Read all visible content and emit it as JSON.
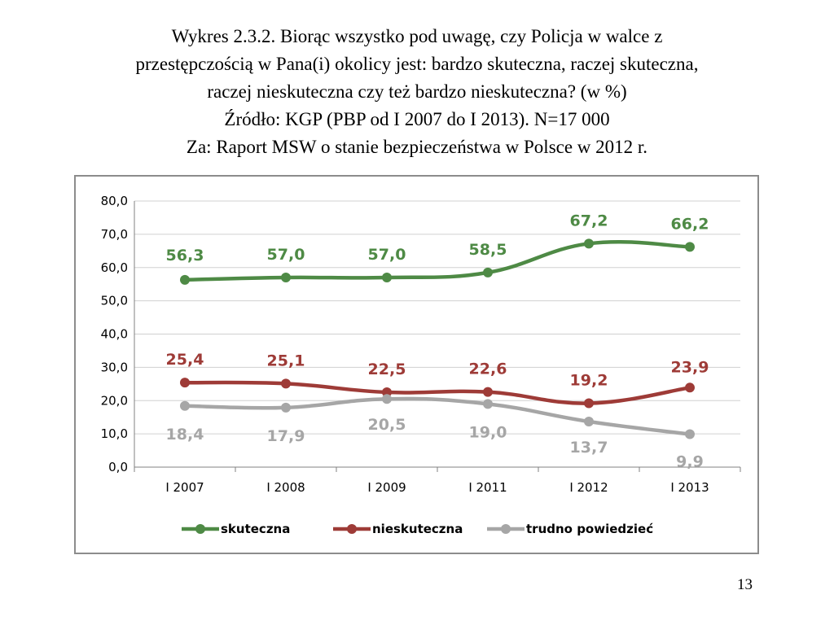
{
  "slide": {
    "title_lines": [
      "Wykres 2.3.2. Biorąc wszystko pod uwagę, czy Policja w walce z",
      "przestępczością w Pana(i) okolicy jest: bardzo skuteczna, raczej skuteczna,",
      "raczej nieskuteczna czy też bardzo nieskuteczna? (w %)",
      "Źródło: KGP (PBP od I 2007 do I 2013). N=17 000",
      "Za: Raport MSW o stanie bezpieczeństwa w Polsce w 2012 r."
    ],
    "page_number": "13"
  },
  "chart_data": {
    "type": "line",
    "categories": [
      "I 2007",
      "I 2008",
      "I 2009",
      "I 2011",
      "I 2012",
      "I 2013"
    ],
    "ylim": [
      0,
      80
    ],
    "yticks": [
      "0,0",
      "10,0",
      "20,0",
      "30,0",
      "40,0",
      "50,0",
      "60,0",
      "70,0",
      "80,0"
    ],
    "grid": true,
    "legend_position": "bottom",
    "series": [
      {
        "name": "skuteczna",
        "color": "#4e8a45",
        "values": [
          56.3,
          57.0,
          57.0,
          58.5,
          67.2,
          66.2
        ],
        "labels": [
          "56,3",
          "57,0",
          "57,0",
          "58,5",
          "67,2",
          "66,2"
        ]
      },
      {
        "name": "nieskuteczna",
        "color": "#9e3b37",
        "values": [
          25.4,
          25.1,
          22.5,
          22.6,
          19.2,
          23.9
        ],
        "labels": [
          "25,4",
          "25,1",
          "22,5",
          "22,6",
          "19,2",
          "23,9"
        ]
      },
      {
        "name": "trudno powiedzieć",
        "color": "#a6a6a6",
        "values": [
          18.4,
          17.9,
          20.5,
          19.0,
          13.7,
          9.9
        ],
        "labels": [
          "18,4",
          "17,9",
          "20,5",
          "19,0",
          "13,7",
          "9,9"
        ]
      }
    ]
  }
}
